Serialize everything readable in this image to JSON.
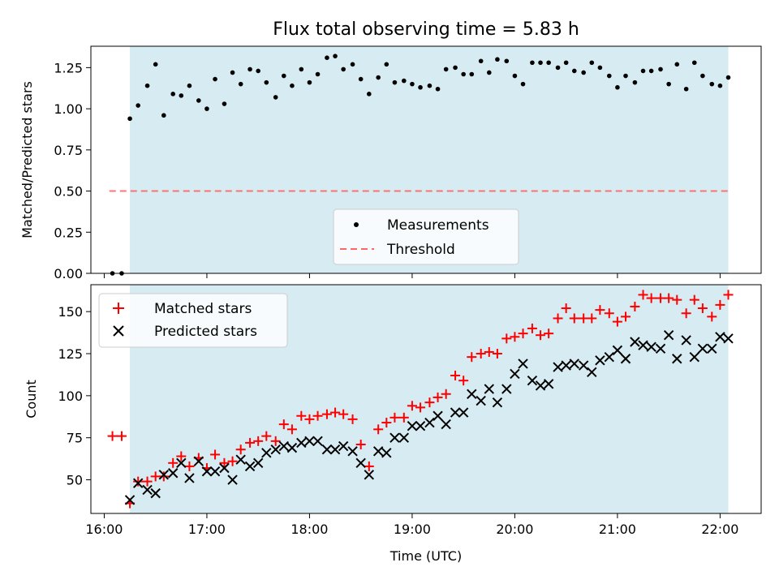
{
  "title": "Flux total observing time = 5.83 h",
  "colors": {
    "shade": "#add8e6",
    "measurement": "#000000",
    "threshold": "#ff6666",
    "matched": "#ff0000",
    "predicted": "#000000"
  },
  "chart_data": [
    {
      "type": "scatter",
      "title": "Flux total observing time = 5.83 h",
      "ylabel": "Matched/Predicted stars",
      "xlabel": "",
      "xlim": [
        15.87,
        22.4
      ],
      "ylim": [
        0,
        1.38
      ],
      "xticks": [
        16,
        17,
        18,
        19,
        20,
        21,
        22
      ],
      "yticks": [
        0,
        0.25,
        0.5,
        0.75,
        1.0,
        1.25
      ],
      "ytick_labels": [
        "0.00",
        "0.25",
        "0.50",
        "0.75",
        "1.00",
        "1.25"
      ],
      "shaded_span": [
        16.25,
        22.08
      ],
      "threshold": {
        "value": 0.5,
        "x_range": [
          16.05,
          22.08
        ]
      },
      "legend": {
        "position": "lower-center",
        "entries": [
          "Measurements",
          "Threshold"
        ]
      },
      "series": [
        {
          "name": "Measurements",
          "x": [
            16.08,
            16.17,
            16.25,
            16.33,
            16.42,
            16.5,
            16.58,
            16.67,
            16.75,
            16.83,
            16.92,
            17.0,
            17.08,
            17.17,
            17.25,
            17.33,
            17.42,
            17.5,
            17.58,
            17.67,
            17.75,
            17.83,
            17.92,
            18.0,
            18.08,
            18.17,
            18.25,
            18.33,
            18.42,
            18.5,
            18.58,
            18.67,
            18.75,
            18.83,
            18.92,
            19.0,
            19.08,
            19.17,
            19.25,
            19.33,
            19.42,
            19.5,
            19.58,
            19.67,
            19.75,
            19.83,
            19.92,
            20.0,
            20.08,
            20.17,
            20.25,
            20.33,
            20.42,
            20.5,
            20.58,
            20.67,
            20.75,
            20.83,
            20.92,
            21.0,
            21.08,
            21.17,
            21.25,
            21.33,
            21.42,
            21.5,
            21.58,
            21.67,
            21.75,
            21.83,
            21.92,
            22.0,
            22.08
          ],
          "y": [
            0.0,
            0.0,
            0.94,
            1.02,
            1.14,
            1.27,
            0.96,
            1.09,
            1.08,
            1.14,
            1.05,
            1.0,
            1.18,
            1.03,
            1.22,
            1.15,
            1.24,
            1.23,
            1.16,
            1.07,
            1.2,
            1.14,
            1.24,
            1.16,
            1.21,
            1.31,
            1.32,
            1.24,
            1.27,
            1.18,
            1.09,
            1.19,
            1.27,
            1.16,
            1.17,
            1.15,
            1.13,
            1.14,
            1.12,
            1.24,
            1.25,
            1.21,
            1.21,
            1.29,
            1.22,
            1.3,
            1.29,
            1.2,
            1.15,
            1.28,
            1.28,
            1.28,
            1.25,
            1.28,
            1.23,
            1.22,
            1.28,
            1.25,
            1.2,
            1.13,
            1.2,
            1.16,
            1.23,
            1.23,
            1.24,
            1.15,
            1.27,
            1.12,
            1.28,
            1.2,
            1.15,
            1.14,
            1.19
          ]
        }
      ]
    },
    {
      "type": "scatter",
      "title": "",
      "ylabel": "Count",
      "xlabel": "Time (UTC)",
      "xlim": [
        15.87,
        22.4
      ],
      "ylim": [
        30,
        166
      ],
      "xticks": [
        16,
        17,
        18,
        19,
        20,
        21,
        22
      ],
      "xtick_labels": [
        "16:00",
        "17:00",
        "18:00",
        "19:00",
        "20:00",
        "21:00",
        "22:00"
      ],
      "yticks": [
        50,
        75,
        100,
        125,
        150
      ],
      "ytick_labels": [
        "50",
        "75",
        "100",
        "125",
        "150"
      ],
      "shaded_span": [
        16.25,
        22.08
      ],
      "legend": {
        "position": "top-left",
        "entries": [
          "Matched stars",
          "Predicted stars"
        ]
      },
      "series": [
        {
          "name": "Matched stars",
          "marker": "plus",
          "x": [
            16.08,
            16.17,
            16.25,
            16.33,
            16.42,
            16.5,
            16.58,
            16.67,
            16.75,
            16.83,
            16.92,
            17.0,
            17.08,
            17.17,
            17.25,
            17.33,
            17.42,
            17.5,
            17.58,
            17.67,
            17.75,
            17.83,
            17.92,
            18.0,
            18.08,
            18.17,
            18.25,
            18.33,
            18.42,
            18.5,
            18.58,
            18.67,
            18.75,
            18.83,
            18.92,
            19.0,
            19.08,
            19.17,
            19.25,
            19.33,
            19.42,
            19.5,
            19.58,
            19.67,
            19.75,
            19.83,
            19.92,
            20.0,
            20.08,
            20.17,
            20.25,
            20.33,
            20.42,
            20.5,
            20.58,
            20.67,
            20.75,
            20.83,
            20.92,
            21.0,
            21.08,
            21.17,
            21.25,
            21.33,
            21.42,
            21.5,
            21.58,
            21.67,
            21.75,
            21.83,
            21.92,
            22.0,
            22.08
          ],
          "y": [
            76,
            76,
            36,
            49,
            49,
            52,
            52,
            60,
            64,
            58,
            63,
            57,
            65,
            60,
            61,
            68,
            72,
            73,
            76,
            73,
            83,
            80,
            88,
            86,
            88,
            89,
            90,
            89,
            86,
            71,
            58,
            80,
            84,
            87,
            87,
            94,
            93,
            96,
            99,
            101,
            112,
            109,
            123,
            125,
            126,
            125,
            134,
            135,
            137,
            140,
            136,
            137,
            146,
            152,
            146,
            146,
            146,
            151,
            149,
            144,
            147,
            153,
            160,
            158,
            158,
            158,
            157,
            149,
            157,
            152,
            147,
            154,
            160
          ]
        },
        {
          "name": "Predicted stars",
          "marker": "x",
          "x": [
            16.25,
            16.33,
            16.42,
            16.5,
            16.58,
            16.67,
            16.75,
            16.83,
            16.92,
            17.0,
            17.08,
            17.17,
            17.25,
            17.33,
            17.42,
            17.5,
            17.58,
            17.67,
            17.75,
            17.83,
            17.92,
            18.0,
            18.08,
            18.17,
            18.25,
            18.33,
            18.42,
            18.5,
            18.58,
            18.67,
            18.75,
            18.83,
            18.92,
            19.0,
            19.08,
            19.17,
            19.25,
            19.33,
            19.42,
            19.5,
            19.58,
            19.67,
            19.75,
            19.83,
            19.92,
            20.0,
            20.08,
            20.17,
            20.25,
            20.33,
            20.42,
            20.5,
            20.58,
            20.67,
            20.75,
            20.83,
            20.92,
            21.0,
            21.08,
            21.17,
            21.25,
            21.33,
            21.42,
            21.5,
            21.58,
            21.67,
            21.75,
            21.83,
            21.92,
            22.0,
            22.08
          ],
          "y": [
            38,
            48,
            44,
            42,
            53,
            54,
            60,
            51,
            61,
            55,
            55,
            57,
            50,
            62,
            58,
            60,
            66,
            68,
            70,
            69,
            72,
            73,
            73,
            68,
            68,
            70,
            67,
            60,
            53,
            67,
            66,
            75,
            75,
            82,
            82,
            84,
            88,
            83,
            90,
            90,
            101,
            97,
            104,
            96,
            104,
            113,
            119,
            109,
            106,
            107,
            117,
            118,
            119,
            118,
            114,
            121,
            123,
            127,
            122,
            132,
            130,
            129,
            128,
            136,
            122,
            133,
            123,
            128,
            128,
            135,
            134
          ]
        }
      ]
    }
  ]
}
